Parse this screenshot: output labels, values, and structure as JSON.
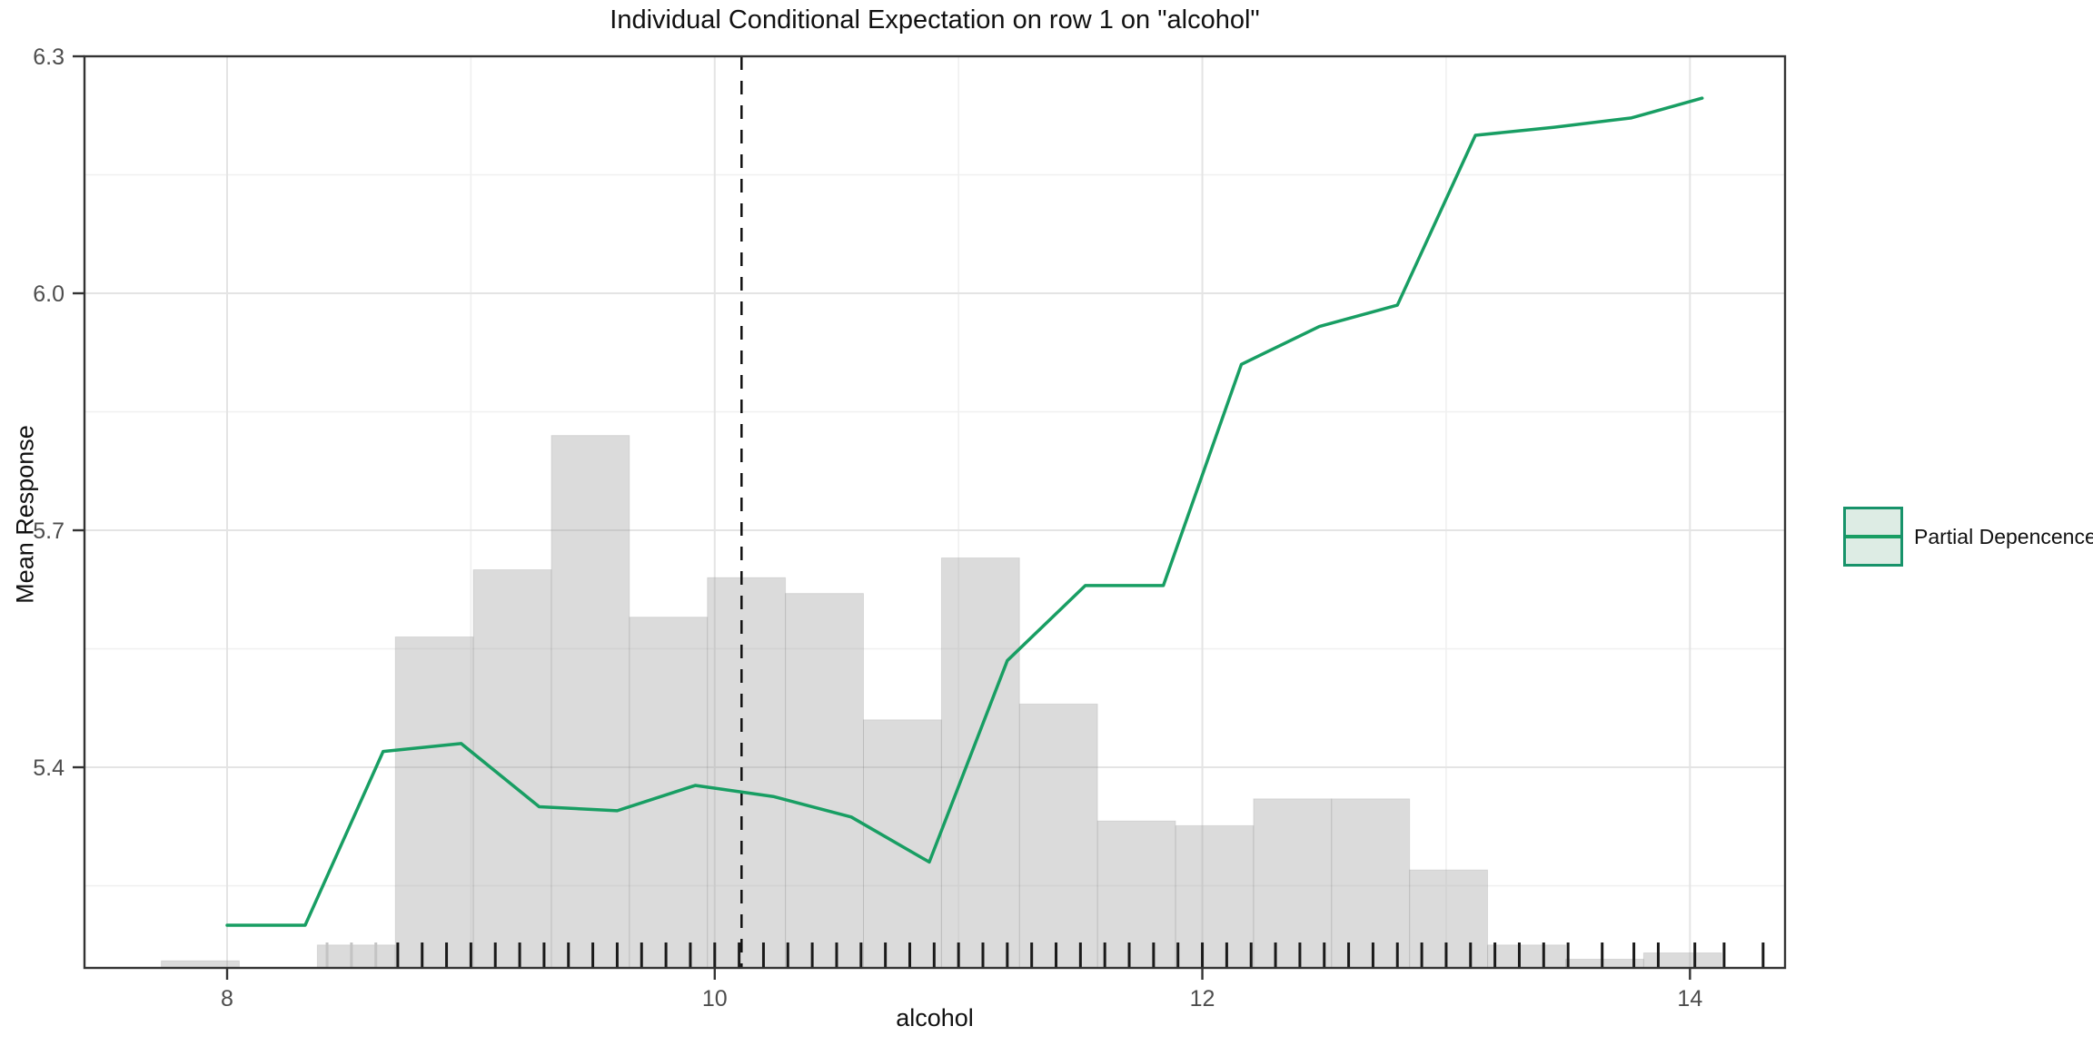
{
  "chart_data": {
    "type": "line",
    "title": "Individual Conditional Expectation on row 1 on \"alcohol\"",
    "xlabel": "alcohol",
    "ylabel": "Mean Response",
    "xlim": [
      7.415,
      14.39
    ],
    "ylim": [
      5.146,
      6.3
    ],
    "x_ticks": [
      8,
      10,
      12,
      14
    ],
    "x_tick_labels": [
      "8",
      "10",
      "12",
      "14"
    ],
    "x_minor": [
      9,
      11,
      13
    ],
    "y_ticks": [
      5.4,
      5.7,
      6.0,
      6.3
    ],
    "y_tick_labels": [
      "5.4",
      "5.7",
      "6.0",
      "6.3"
    ],
    "y_minor": [
      5.25,
      5.55,
      5.85,
      6.15
    ],
    "grid": "on",
    "legend_position": "right",
    "vline_x": 10.11,
    "series": [
      {
        "name": "Partial Depencence",
        "color": "#189e63",
        "x": [
          8.0,
          8.32,
          8.64,
          8.96,
          9.28,
          9.6,
          9.92,
          10.24,
          10.56,
          10.88,
          11.2,
          11.52,
          11.84,
          12.16,
          12.48,
          12.8,
          13.12,
          13.44,
          13.76,
          14.05
        ],
        "y": [
          5.2,
          5.2,
          5.42,
          5.43,
          5.35,
          5.345,
          5.377,
          5.363,
          5.337,
          5.28,
          5.535,
          5.63,
          5.63,
          5.91,
          5.958,
          5.985,
          6.2,
          6.21,
          6.222,
          6.247
        ]
      }
    ],
    "histogram": {
      "bin_width": 0.32,
      "baseline": 5.146,
      "fill": "rgba(160,160,160,0.38)",
      "bins": [
        {
          "x0": 7.73,
          "top": 5.155
        },
        {
          "x0": 8.37,
          "top": 5.175
        },
        {
          "x0": 8.69,
          "top": 5.565
        },
        {
          "x0": 9.01,
          "top": 5.65
        },
        {
          "x0": 9.33,
          "top": 5.82
        },
        {
          "x0": 9.65,
          "top": 5.59
        },
        {
          "x0": 9.97,
          "top": 5.64
        },
        {
          "x0": 10.29,
          "top": 5.62
        },
        {
          "x0": 10.61,
          "top": 5.46
        },
        {
          "x0": 10.93,
          "top": 5.665
        },
        {
          "x0": 11.25,
          "top": 5.48
        },
        {
          "x0": 11.57,
          "top": 5.332
        },
        {
          "x0": 11.89,
          "top": 5.326
        },
        {
          "x0": 12.21,
          "top": 5.36
        },
        {
          "x0": 12.53,
          "top": 5.36
        },
        {
          "x0": 12.85,
          "top": 5.27
        },
        {
          "x0": 13.17,
          "top": 5.175
        },
        {
          "x0": 13.49,
          "top": 5.157
        },
        {
          "x0": 13.81,
          "top": 5.165
        }
      ]
    },
    "rug": {
      "color": "#1a1a1a",
      "light_color": "#c4c4c4",
      "light_values": [
        8.41,
        8.51,
        8.61
      ],
      "values": [
        8.7,
        8.8,
        8.9,
        9.0,
        9.1,
        9.2,
        9.3,
        9.4,
        9.5,
        9.6,
        9.7,
        9.8,
        9.9,
        10.0,
        10.1,
        10.2,
        10.3,
        10.4,
        10.5,
        10.6,
        10.7,
        10.8,
        10.9,
        11.0,
        11.1,
        11.2,
        11.3,
        11.4,
        11.5,
        11.6,
        11.7,
        11.8,
        11.9,
        12.0,
        12.1,
        12.2,
        12.3,
        12.4,
        12.5,
        12.6,
        12.7,
        12.8,
        12.9,
        13.0,
        13.1,
        13.2,
        13.3,
        13.4,
        13.5,
        13.64,
        13.77,
        13.87,
        14.02,
        14.14,
        14.3
      ]
    },
    "colors": {
      "panel_border": "#333333",
      "grid_major": "#e4e4e4",
      "grid_minor": "#f0f0f0",
      "vline": "#111111",
      "tick": "#333333",
      "tick_label": "#4d4d4d"
    }
  }
}
